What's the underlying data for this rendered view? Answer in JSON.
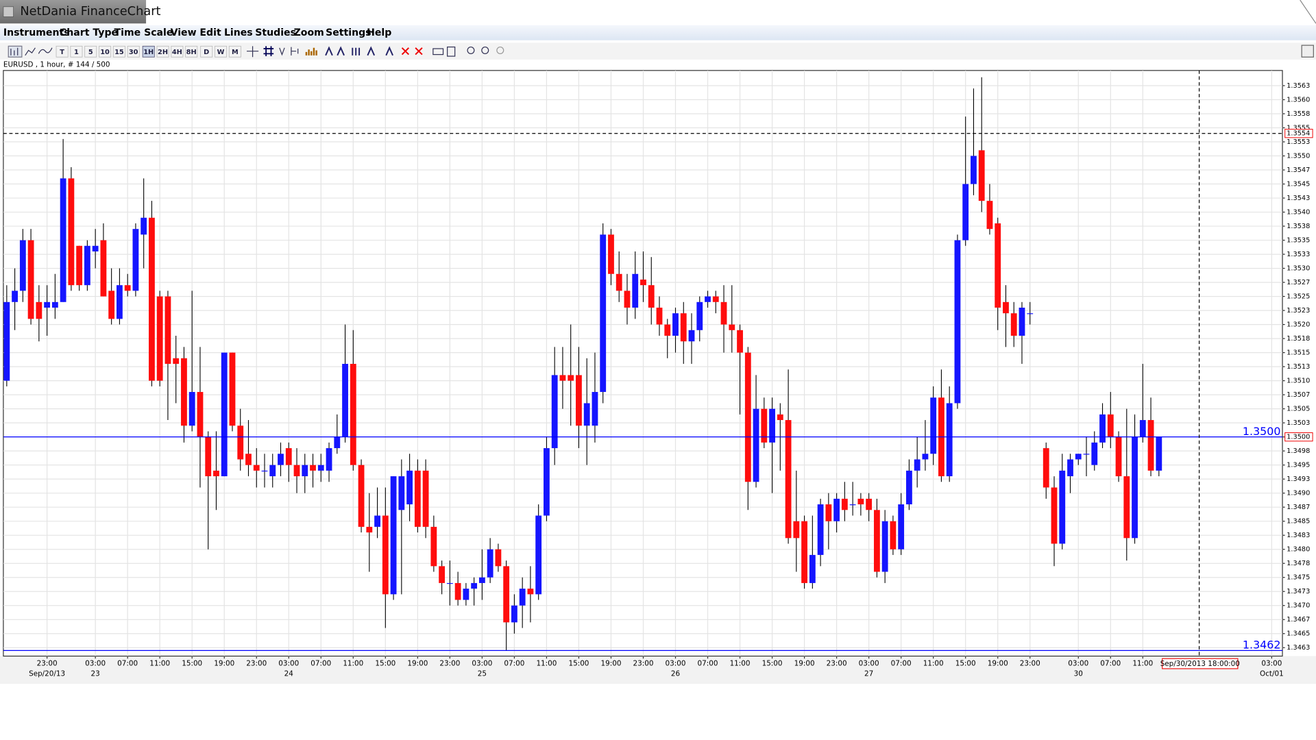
{
  "window": {
    "title": "NetDania FinanceChart"
  },
  "menu": [
    "Instruments",
    "Chart Type",
    "Time Scale",
    "View",
    "Edit",
    "Lines",
    "Studies",
    "Zoom",
    "Settings",
    "Help"
  ],
  "toolbar": [
    "T",
    "1",
    "5",
    "10",
    "15",
    "30",
    "1H",
    "2H",
    "4H",
    "8H",
    "D",
    "W",
    "M"
  ],
  "instrument": "EURUSD , 1 hour, # 144 / 500",
  "chart_data": {
    "type": "candlestick",
    "up_color": "#1515ff",
    "down_color": "#ff0d0d",
    "wick_color": "#000000",
    "grid": true,
    "xlim": [
      -0.42,
      158.33
    ],
    "ylim": [
      1.3461,
      1.35652
    ],
    "xticks": [
      {
        "value": 5,
        "label": "23:00",
        "sublabel": "Sep/20/13"
      },
      {
        "value": 11,
        "label": "03:00",
        "sublabel": "23"
      },
      {
        "value": 15,
        "label": "07:00"
      },
      {
        "value": 19,
        "label": "11:00"
      },
      {
        "value": 23,
        "label": "15:00"
      },
      {
        "value": 27,
        "label": "19:00"
      },
      {
        "value": 31,
        "label": "23:00"
      },
      {
        "value": 35,
        "label": "03:00",
        "sublabel": "24"
      },
      {
        "value": 39,
        "label": "07:00"
      },
      {
        "value": 43,
        "label": "11:00"
      },
      {
        "value": 47,
        "label": "15:00"
      },
      {
        "value": 51,
        "label": "19:00"
      },
      {
        "value": 55,
        "label": "23:00"
      },
      {
        "value": 59,
        "label": "03:00",
        "sublabel": "25"
      },
      {
        "value": 63,
        "label": "07:00"
      },
      {
        "value": 67,
        "label": "11:00"
      },
      {
        "value": 71,
        "label": "15:00"
      },
      {
        "value": 75,
        "label": "19:00"
      },
      {
        "value": 79,
        "label": "23:00"
      },
      {
        "value": 83,
        "label": "03:00",
        "sublabel": "26"
      },
      {
        "value": 87,
        "label": "07:00"
      },
      {
        "value": 91,
        "label": "11:00"
      },
      {
        "value": 95,
        "label": "15:00"
      },
      {
        "value": 99,
        "label": "19:00"
      },
      {
        "value": 103,
        "label": "23:00"
      },
      {
        "value": 107,
        "label": "03:00",
        "sublabel": "27"
      },
      {
        "value": 111,
        "label": "07:00"
      },
      {
        "value": 115,
        "label": "11:00"
      },
      {
        "value": 119,
        "label": "15:00"
      },
      {
        "value": 123,
        "label": "19:00"
      },
      {
        "value": 127,
        "label": "23:00"
      },
      {
        "value": 133,
        "label": "03:00",
        "sublabel": "30"
      },
      {
        "value": 137,
        "label": "07:00"
      },
      {
        "value": 141,
        "label": "11:00"
      },
      {
        "value": 157,
        "label": "03:00",
        "sublabel": "Oct/01"
      }
    ],
    "yticks": [
      {
        "value": 1.34625,
        "label": "1.3463"
      },
      {
        "value": 1.3465,
        "label": "1.3465"
      },
      {
        "value": 1.34675,
        "label": "1.3467"
      },
      {
        "value": 1.347,
        "label": "1.3470"
      },
      {
        "value": 1.34725,
        "label": "1.3473"
      },
      {
        "value": 1.3475,
        "label": "1.3475"
      },
      {
        "value": 1.34775,
        "label": "1.3478"
      },
      {
        "value": 1.348,
        "label": "1.3480"
      },
      {
        "value": 1.34825,
        "label": "1.3483"
      },
      {
        "value": 1.3485,
        "label": "1.3485"
      },
      {
        "value": 1.34875,
        "label": "1.3487"
      },
      {
        "value": 1.349,
        "label": "1.3490"
      },
      {
        "value": 1.34925,
        "label": "1.3493"
      },
      {
        "value": 1.3495,
        "label": "1.3495"
      },
      {
        "value": 1.34975,
        "label": "1.3498"
      },
      {
        "value": 1.35,
        "label": "1.3500"
      },
      {
        "value": 1.35025,
        "label": "1.3503"
      },
      {
        "value": 1.3505,
        "label": "1.3505"
      },
      {
        "value": 1.35075,
        "label": "1.3507"
      },
      {
        "value": 1.351,
        "label": "1.3510"
      },
      {
        "value": 1.35125,
        "label": "1.3513"
      },
      {
        "value": 1.3515,
        "label": "1.3515"
      },
      {
        "value": 1.35175,
        "label": "1.3518"
      },
      {
        "value": 1.352,
        "label": "1.3520"
      },
      {
        "value": 1.35225,
        "label": "1.3523"
      },
      {
        "value": 1.3525,
        "label": "1.3525"
      },
      {
        "value": 1.35275,
        "label": "1.3527"
      },
      {
        "value": 1.353,
        "label": "1.3530"
      },
      {
        "value": 1.35325,
        "label": "1.3533"
      },
      {
        "value": 1.3535,
        "label": "1.3535"
      },
      {
        "value": 1.35375,
        "label": "1.3538"
      },
      {
        "value": 1.354,
        "label": "1.3540"
      },
      {
        "value": 1.35425,
        "label": "1.3543"
      },
      {
        "value": 1.3545,
        "label": "1.3545"
      },
      {
        "value": 1.35475,
        "label": "1.3547"
      },
      {
        "value": 1.355,
        "label": "1.3550"
      },
      {
        "value": 1.35525,
        "label": "1.3553"
      },
      {
        "value": 1.3555,
        "label": "1.3555"
      },
      {
        "value": 1.35575,
        "label": "1.3558"
      },
      {
        "value": 1.356,
        "label": "1.3560"
      },
      {
        "value": 1.35625,
        "label": "1.3563"
      }
    ],
    "levels": [
      {
        "value": 1.3554,
        "label": "1.3554",
        "color": "#000000",
        "dashed": true,
        "axis_box": true,
        "plot_label": false
      },
      {
        "value": 1.35,
        "label": "1.3500",
        "color": "#0000ff",
        "dashed": false,
        "axis_box": true,
        "plot_label": true
      },
      {
        "value": 1.3462,
        "label": "1.3462",
        "color": "#0000ff",
        "dashed": false,
        "axis_box": false,
        "plot_label": true
      }
    ],
    "crosshair_x": {
      "value": 148,
      "label": "Sep/30/2013 18:00:00"
    },
    "open": [
      1.351,
      1.3524,
      1.3526,
      1.3535,
      1.3524,
      1.3523,
      1.3523,
      1.3524,
      1.3546,
      1.3534,
      1.3527,
      1.3533,
      1.3535,
      1.3526,
      1.3521,
      1.3527,
      1.3526,
      1.3536,
      1.3539,
      1.3525,
      1.3525,
      1.3514,
      1.3514,
      1.3502,
      1.3508,
      1.35,
      1.3494,
      1.3493,
      1.3515,
      1.3502,
      1.3497,
      1.3495,
      1.3494,
      1.3493,
      1.3495,
      1.3498,
      1.3495,
      1.3493,
      1.3495,
      1.3494,
      1.3494,
      1.3498,
      1.35,
      1.3513,
      1.3495,
      1.3484,
      1.3484,
      1.3486,
      1.3472,
      1.3487,
      1.3488,
      1.3494,
      1.3494,
      1.3484,
      1.3477,
      1.3474,
      1.3474,
      1.3471,
      1.3473,
      1.3474,
      1.3475,
      1.348,
      1.3477,
      1.3467,
      1.347,
      1.3473,
      1.3472,
      1.3486,
      1.3498,
      1.3511,
      1.3511,
      1.3511,
      1.3502,
      1.3502,
      1.3508,
      1.3536,
      1.3529,
      1.3526,
      1.3523,
      1.3528,
      1.3527,
      1.3523,
      1.352,
      1.3518,
      1.3522,
      1.3517,
      1.3519,
      1.3524,
      1.3525,
      1.3524,
      1.352,
      1.3519,
      1.3515,
      1.3492,
      1.3505,
      1.3499,
      1.3504,
      1.3503,
      1.3485,
      1.3485,
      1.3474,
      1.3479,
      1.3488,
      1.3485,
      1.3489,
      1.3488,
      1.3489,
      1.3489,
      1.3487,
      1.3476,
      1.3485,
      1.348,
      1.3488,
      1.3494,
      1.3496,
      1.3497,
      1.3507,
      1.3493,
      1.3506,
      1.3535,
      1.3545,
      1.3551,
      1.3542,
      1.3538,
      1.3524,
      1.3522,
      1.3518,
      1.3522,
      null,
      1.3498,
      1.3491,
      1.3481,
      1.3493,
      1.3496,
      1.3497,
      1.3495,
      1.3499,
      1.3504,
      1.35,
      1.3493,
      1.3482,
      1.35,
      1.3503,
      1.3494
    ],
    "high": [
      1.3527,
      1.353,
      1.3537,
      1.3537,
      1.3527,
      1.3527,
      1.3529,
      1.3553,
      1.3548,
      1.3534,
      1.3535,
      1.3537,
      1.3538,
      1.353,
      1.353,
      1.3529,
      1.3538,
      1.3546,
      1.3542,
      1.3526,
      1.3526,
      1.3518,
      1.3516,
      1.3526,
      1.3516,
      1.3501,
      1.3501,
      1.3515,
      1.3515,
      1.3505,
      1.3503,
      1.3498,
      1.3497,
      1.3497,
      1.3499,
      1.3499,
      1.3498,
      1.3497,
      1.3497,
      1.3497,
      1.3499,
      1.3504,
      1.352,
      1.3519,
      1.3496,
      1.349,
      1.3491,
      1.3491,
      1.3493,
      1.3496,
      1.3497,
      1.3496,
      1.3496,
      1.3486,
      1.3478,
      1.3478,
      1.3476,
      1.3474,
      1.3475,
      1.348,
      1.3482,
      1.3481,
      1.3478,
      1.3472,
      1.3475,
      1.3477,
      1.3488,
      1.35,
      1.3516,
      1.3516,
      1.352,
      1.3516,
      1.3514,
      1.3515,
      1.3538,
      1.3537,
      1.3533,
      1.3529,
      1.3533,
      1.3533,
      1.3532,
      1.3525,
      1.3521,
      1.3523,
      1.3524,
      1.3522,
      1.3525,
      1.3526,
      1.3526,
      1.3527,
      1.3527,
      1.352,
      1.3516,
      1.3511,
      1.3507,
      1.3507,
      1.3506,
      1.3512,
      1.3494,
      1.3486,
      1.3486,
      1.3489,
      1.349,
      1.349,
      1.3492,
      1.3492,
      1.349,
      1.349,
      1.3489,
      1.3487,
      1.3486,
      1.349,
      1.3496,
      1.35,
      1.3503,
      1.3509,
      1.3512,
      1.3509,
      1.3536,
      1.3557,
      1.3562,
      1.3564,
      1.3545,
      1.3539,
      1.3527,
      1.3524,
      1.3524,
      1.3524,
      null,
      1.3499,
      1.3493,
      1.3497,
      1.3497,
      1.3497,
      1.35,
      1.3501,
      1.3506,
      1.3508,
      1.3501,
      1.3505,
      1.3504,
      1.3513,
      1.3507,
      1.35
    ],
    "low": [
      1.3509,
      1.3519,
      1.3524,
      1.352,
      1.3517,
      1.3518,
      1.3521,
      1.3524,
      1.3526,
      1.3526,
      1.3526,
      1.353,
      1.3525,
      1.352,
      1.352,
      1.3525,
      1.3525,
      1.353,
      1.3509,
      1.3509,
      1.3503,
      1.3506,
      1.3499,
      1.3501,
      1.3491,
      1.348,
      1.3487,
      1.3493,
      1.3501,
      1.3494,
      1.3493,
      1.3491,
      1.3491,
      1.3491,
      1.3493,
      1.3492,
      1.349,
      1.349,
      1.3491,
      1.3492,
      1.3492,
      1.3497,
      1.3499,
      1.3494,
      1.3483,
      1.3476,
      1.3482,
      1.3466,
      1.3471,
      1.3472,
      1.3485,
      1.3483,
      1.3482,
      1.3476,
      1.3472,
      1.347,
      1.347,
      1.347,
      1.347,
      1.3471,
      1.3474,
      1.3476,
      1.3462,
      1.3465,
      1.3466,
      1.3467,
      1.3471,
      1.3485,
      1.3495,
      1.3505,
      1.3502,
      1.3498,
      1.3495,
      1.3499,
      1.3506,
      1.3527,
      1.3524,
      1.352,
      1.3521,
      1.3524,
      1.352,
      1.3518,
      1.3514,
      1.3515,
      1.3513,
      1.3513,
      1.3517,
      1.3523,
      1.3522,
      1.3515,
      1.3515,
      1.3504,
      1.3487,
      1.3491,
      1.3498,
      1.349,
      1.3494,
      1.3481,
      1.3476,
      1.3473,
      1.3473,
      1.3477,
      1.348,
      1.3483,
      1.3485,
      1.3486,
      1.3486,
      1.3485,
      1.3475,
      1.3474,
      1.3479,
      1.3479,
      1.3487,
      1.3491,
      1.3494,
      1.3495,
      1.3492,
      1.3492,
      1.3505,
      1.3534,
      1.3543,
      1.354,
      1.3536,
      1.3519,
      1.3516,
      1.3516,
      1.3513,
      1.352,
      null,
      1.3489,
      1.3477,
      1.348,
      1.349,
      1.3495,
      1.3493,
      1.3494,
      1.3498,
      1.3498,
      1.3492,
      1.3478,
      1.3481,
      1.3499,
      1.3493,
      1.3493
    ],
    "close": [
      1.3524,
      1.3526,
      1.3535,
      1.3521,
      1.3521,
      1.3524,
      1.3524,
      1.3546,
      1.3527,
      1.3527,
      1.3534,
      1.3534,
      1.3525,
      1.3521,
      1.3527,
      1.3526,
      1.3537,
      1.3539,
      1.351,
      1.351,
      1.3513,
      1.3513,
      1.3502,
      1.3508,
      1.35,
      1.3493,
      1.3493,
      1.3515,
      1.3502,
      1.3496,
      1.3495,
      1.3494,
      1.3494,
      1.3495,
      1.3497,
      1.3495,
      1.3493,
      1.3495,
      1.3494,
      1.3495,
      1.3498,
      1.35,
      1.3513,
      1.3495,
      1.3484,
      1.3483,
      1.3486,
      1.3472,
      1.3493,
      1.3493,
      1.3494,
      1.3484,
      1.3484,
      1.3477,
      1.3474,
      1.3474,
      1.3471,
      1.3473,
      1.3474,
      1.3475,
      1.348,
      1.3477,
      1.3467,
      1.347,
      1.3473,
      1.3472,
      1.3486,
      1.3498,
      1.3511,
      1.351,
      1.351,
      1.3502,
      1.3506,
      1.3508,
      1.3536,
      1.3529,
      1.3526,
      1.3523,
      1.3529,
      1.3527,
      1.3523,
      1.352,
      1.3518,
      1.3522,
      1.3517,
      1.3519,
      1.3524,
      1.3525,
      1.3524,
      1.352,
      1.3519,
      1.3515,
      1.3492,
      1.3505,
      1.3499,
      1.3505,
      1.3503,
      1.3482,
      1.3482,
      1.3474,
      1.3479,
      1.3488,
      1.3485,
      1.3489,
      1.3487,
      1.3488,
      1.3488,
      1.3487,
      1.3476,
      1.3485,
      1.348,
      1.3488,
      1.3494,
      1.3496,
      1.3497,
      1.3507,
      1.3493,
      1.3506,
      1.3535,
      1.3545,
      1.355,
      1.3542,
      1.3537,
      1.3523,
      1.3522,
      1.3518,
      1.3523,
      1.3522,
      null,
      1.3491,
      1.3481,
      1.3494,
      1.3496,
      1.3497,
      1.3497,
      1.3499,
      1.3504,
      1.35,
      1.3493,
      1.3482,
      1.35,
      1.3503,
      1.3494,
      1.35
    ]
  }
}
